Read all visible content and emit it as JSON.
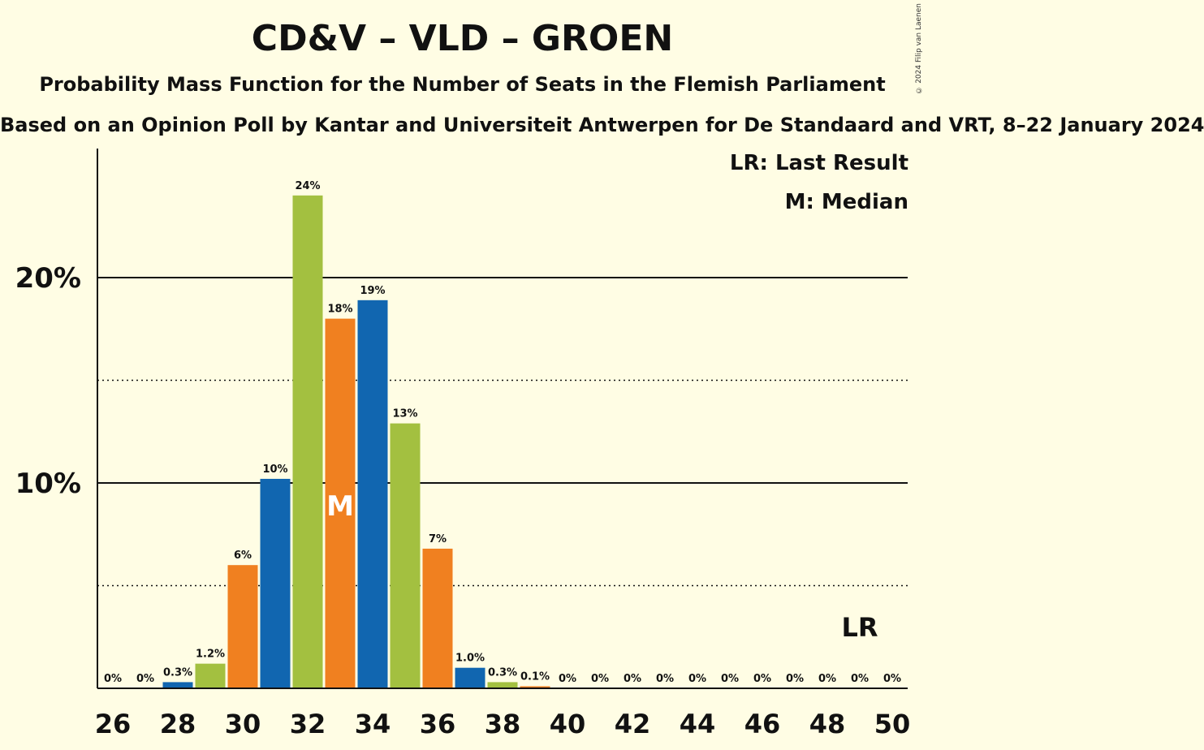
{
  "title": "CD&V – VLD – GROEN",
  "subtitle": "Probability Mass Function for the Number of Seats in the Flemish Parliament",
  "source": "Based on an Opinion Poll by Kantar and Universiteit Antwerpen for De Standaard and VRT, 8–22 January 2024",
  "copyright": "© 2024 Filip van Laenen",
  "legend": {
    "last_result": "LR: Last Result",
    "median": "M: Median"
  },
  "colors": {
    "blue": "#1166b0",
    "green": "#a3c040",
    "orange": "#f08020",
    "background": "#fffde4"
  },
  "chart_data": {
    "type": "bar",
    "categories": [
      26,
      27,
      28,
      29,
      30,
      31,
      32,
      33,
      34,
      35,
      36,
      37,
      38,
      39,
      40,
      41,
      42,
      43,
      44,
      45,
      46,
      47,
      48,
      49,
      50
    ],
    "values": [
      0,
      0,
      0.3,
      1.2,
      6,
      10.2,
      24,
      18,
      18.9,
      12.9,
      6.8,
      1.0,
      0.3,
      0.1,
      0,
      0,
      0,
      0,
      0,
      0,
      0,
      0,
      0,
      0,
      0
    ],
    "value_labels": [
      "0%",
      "0%",
      "0.3%",
      "1.2%",
      "6%",
      "10%",
      "24%",
      "18%",
      "19%",
      "13%",
      "7%",
      "1.0%",
      "0.3%",
      "0.1%",
      "0%",
      "0%",
      "0%",
      "0%",
      "0%",
      "0%",
      "0%",
      "0%",
      "0%",
      "0%",
      "0%"
    ],
    "bar_colors": [
      "blue",
      "green",
      "blue",
      "green",
      "orange",
      "blue",
      "green",
      "orange",
      "blue",
      "green",
      "orange",
      "blue",
      "green",
      "orange",
      "blue",
      "green",
      "orange",
      "blue",
      "green",
      "orange",
      "blue",
      "green",
      "orange",
      "blue",
      "green"
    ],
    "x_tick_labels": [
      "26",
      "28",
      "30",
      "32",
      "34",
      "36",
      "38",
      "40",
      "42",
      "44",
      "46",
      "48",
      "50"
    ],
    "y_tick_labels": [
      "10%",
      "20%"
    ],
    "y_major_ticks": [
      10,
      20
    ],
    "y_minor_ticks": [
      5,
      15
    ],
    "ylim": [
      0,
      26
    ],
    "median_seat": 33,
    "median_marker": "M",
    "last_result_seat": 49,
    "last_result_marker": "LR",
    "grid": true
  }
}
